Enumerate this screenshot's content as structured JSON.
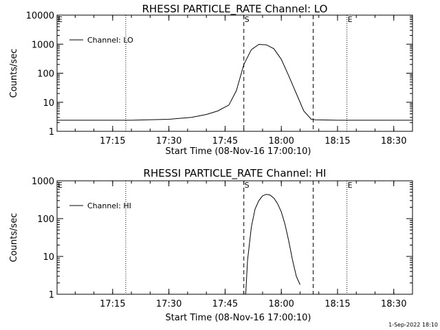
{
  "chart_data": [
    {
      "type": "line",
      "title": "RHESSI PARTICLE_RATE Channel: LO",
      "xlabel": "Start Time (08-Nov-16 17:00:10)",
      "ylabel": "Counts/sec",
      "xlim": [
        "17:00:10",
        "18:35:00"
      ],
      "x_ticks": [
        "17:15",
        "17:30",
        "17:45",
        "18:00",
        "18:15",
        "18:30"
      ],
      "ylim": [
        1,
        10000
      ],
      "yscale": "log",
      "y_ticks": [
        "1",
        "10",
        "100",
        "1000",
        "10000"
      ],
      "legend": "top-left",
      "grid": false,
      "series": [
        {
          "name": "Channel: LO",
          "x": [
            "17:00:10",
            "17:10:00",
            "17:20:00",
            "17:30:00",
            "17:36:00",
            "17:40:00",
            "17:43:00",
            "17:46:00",
            "17:48:00",
            "17:50:00",
            "17:52:00",
            "17:54:00",
            "17:56:00",
            "17:58:00",
            "18:00:00",
            "18:02:00",
            "18:04:00",
            "18:06:00",
            "18:08:00",
            "18:09:00",
            "18:15:00",
            "18:25:00",
            "18:35:00"
          ],
          "y": [
            2.4,
            2.4,
            2.4,
            2.6,
            3.0,
            3.8,
            5,
            8,
            25,
            200,
            650,
            980,
            950,
            700,
            300,
            80,
            20,
            5,
            2.6,
            2.5,
            2.4,
            2.4,
            2.4
          ]
        }
      ],
      "markers": [
        {
          "label": "S",
          "time": "17:50:00",
          "style": "dashed"
        },
        {
          "label": "",
          "time": "18:08:30",
          "style": "dashed"
        },
        {
          "label": "E",
          "time": "18:17:30",
          "style": "dotted"
        },
        {
          "label": "E",
          "time": "17:00:10",
          "style": "dotted"
        }
      ],
      "dotted_lines": [
        "17:18:30",
        "18:35:00"
      ]
    },
    {
      "type": "line",
      "title": "RHESSI PARTICLE_RATE Channel: HI",
      "xlabel": "Start Time (08-Nov-16 17:00:10)",
      "ylabel": "Counts/sec",
      "xlim": [
        "17:00:10",
        "18:35:00"
      ],
      "x_ticks": [
        "17:15",
        "17:30",
        "17:45",
        "18:00",
        "18:15",
        "18:30"
      ],
      "ylim": [
        1,
        1000
      ],
      "yscale": "log",
      "y_ticks": [
        "1",
        "10",
        "100",
        "1000"
      ],
      "legend": "top-left",
      "grid": false,
      "series": [
        {
          "name": "Channel: HI",
          "x": [
            "17:50:30",
            "17:51:00",
            "17:52:00",
            "17:53:00",
            "17:54:00",
            "17:55:00",
            "17:56:00",
            "17:57:00",
            "17:58:00",
            "17:59:00",
            "18:00:00",
            "18:01:00",
            "18:02:00",
            "18:03:00",
            "18:04:00",
            "18:05:00"
          ],
          "y": [
            1,
            8,
            60,
            180,
            300,
            400,
            440,
            420,
            350,
            250,
            150,
            70,
            25,
            8,
            3,
            1.8
          ]
        }
      ],
      "markers": [
        {
          "label": "S",
          "time": "17:50:00",
          "style": "dashed"
        },
        {
          "label": "",
          "time": "18:08:30",
          "style": "dashed"
        },
        {
          "label": "E",
          "time": "18:17:30",
          "style": "dotted"
        },
        {
          "label": "E",
          "time": "17:00:10",
          "style": "dotted"
        }
      ],
      "dotted_lines": [
        "17:18:30",
        "18:35:00"
      ]
    }
  ],
  "footer": "1-Sep-2022 18:10"
}
